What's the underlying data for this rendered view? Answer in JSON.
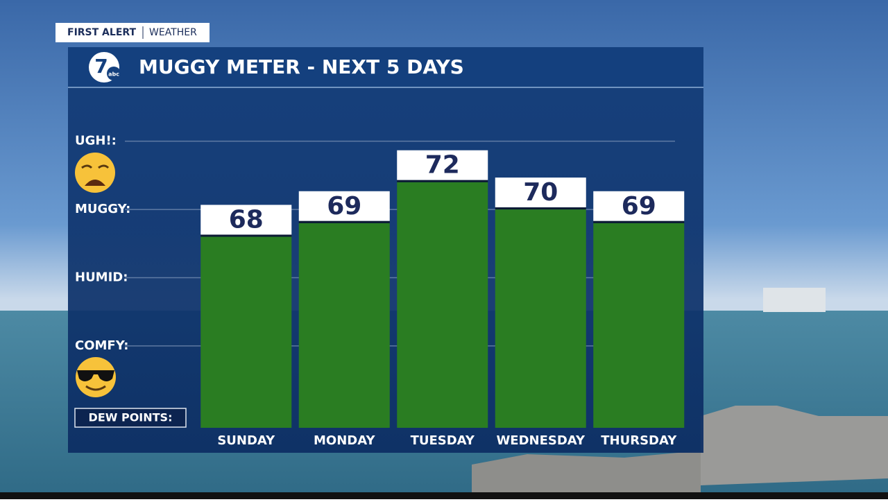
{
  "header": {
    "brand": "FIRST ALERT",
    "section": "WEATHER",
    "logo_number": "7",
    "logo_text": "abc"
  },
  "chart_data": {
    "type": "bar",
    "title": "MUGGY METER - NEXT 5 DAYS",
    "y_label": "DEW POINTS:",
    "categories": [
      "SUNDAY",
      "MONDAY",
      "TUESDAY",
      "WEDNESDAY",
      "THURSDAY"
    ],
    "values": [
      68,
      69,
      72,
      70,
      69
    ],
    "color": "#2a7d22",
    "ylim": [
      54,
      76
    ],
    "yticks": [
      {
        "value": 60,
        "label": "COMFY:"
      },
      {
        "value": 65,
        "label": "HUMID:"
      },
      {
        "value": 70,
        "label": "MUGGY:"
      },
      {
        "value": 75,
        "label": "UGH!:"
      }
    ],
    "grid": true
  }
}
